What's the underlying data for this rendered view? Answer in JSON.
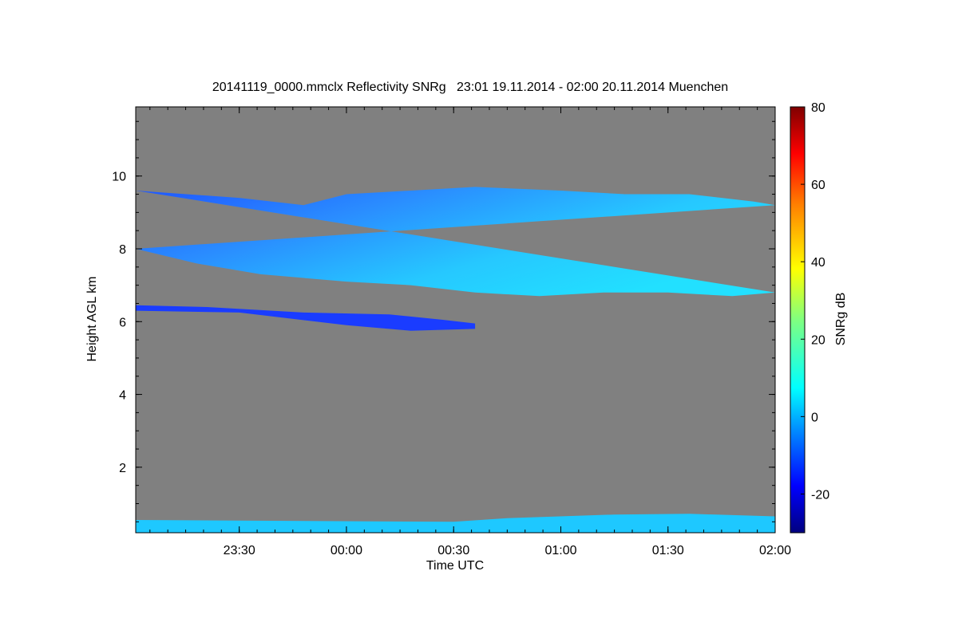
{
  "chart_data": {
    "type": "heatmap",
    "title": "20141119_0000.mmclx Reflectivity SNRg   23:01 19.11.2014 - 02:00 20.11.2014 Muenchen",
    "xlabel": "Time UTC",
    "ylabel": "Height AGL km",
    "x_range_hours": [
      23.017,
      26.0
    ],
    "y_range_km": [
      0.2,
      11.9
    ],
    "x_ticks": [
      {
        "value": 23.5,
        "label": "23:30"
      },
      {
        "value": 24.0,
        "label": "00:00"
      },
      {
        "value": 24.5,
        "label": "00:30"
      },
      {
        "value": 25.0,
        "label": "01:00"
      },
      {
        "value": 25.5,
        "label": "01:30"
      },
      {
        "value": 26.0,
        "label": "02:00"
      }
    ],
    "y_ticks": [
      {
        "value": 2,
        "label": "2"
      },
      {
        "value": 4,
        "label": "4"
      },
      {
        "value": 6,
        "label": "6"
      },
      {
        "value": 8,
        "label": "8"
      },
      {
        "value": 10,
        "label": "10"
      }
    ],
    "background_color": "#808080",
    "colorbar": {
      "label": "SNRg dB",
      "range": [
        -30,
        80
      ],
      "colormap": "jet",
      "ticks": [
        {
          "value": -20,
          "label": "-20"
        },
        {
          "value": 0,
          "label": "0"
        },
        {
          "value": 20,
          "label": "20"
        },
        {
          "value": 40,
          "label": "40"
        },
        {
          "value": 60,
          "label": "60"
        },
        {
          "value": 80,
          "label": "80"
        }
      ]
    },
    "features": [
      {
        "name": "upper cirrus layer",
        "color": "#1e8cff",
        "top_edge": [
          [
            23.017,
            9.6
          ],
          [
            23.5,
            9.4
          ],
          [
            23.8,
            9.2
          ],
          [
            24.0,
            9.5
          ],
          [
            24.3,
            9.6
          ],
          [
            24.6,
            9.7
          ],
          [
            25.0,
            9.6
          ],
          [
            25.3,
            9.5
          ],
          [
            25.6,
            9.5
          ],
          [
            25.9,
            9.3
          ],
          [
            26.0,
            9.2
          ]
        ],
        "bottom_edge": [
          [
            23.017,
            8.0
          ],
          [
            23.3,
            7.6
          ],
          [
            23.6,
            7.3
          ],
          [
            24.0,
            7.1
          ],
          [
            24.3,
            7.0
          ],
          [
            24.6,
            6.8
          ],
          [
            24.9,
            6.7
          ],
          [
            25.2,
            6.8
          ],
          [
            25.5,
            6.8
          ],
          [
            25.8,
            6.7
          ],
          [
            26.0,
            6.8
          ]
        ]
      },
      {
        "name": "mid-level cloud layer",
        "color": "#1a3cff",
        "top_edge": [
          [
            23.017,
            6.45
          ],
          [
            23.35,
            6.4
          ],
          [
            23.8,
            6.25
          ],
          [
            24.2,
            6.2
          ],
          [
            24.45,
            6.05
          ],
          [
            24.6,
            5.95
          ]
        ],
        "bottom_edge": [
          [
            24.6,
            5.8
          ],
          [
            24.3,
            5.75
          ],
          [
            24.0,
            5.9
          ],
          [
            23.5,
            6.25
          ],
          [
            23.017,
            6.3
          ]
        ]
      },
      {
        "name": "low-level boundary echo",
        "color": "#1ec8ff",
        "top_edge": [
          [
            23.017,
            0.55
          ],
          [
            24.5,
            0.5
          ],
          [
            24.75,
            0.6
          ],
          [
            25.25,
            0.7
          ],
          [
            25.6,
            0.72
          ],
          [
            26.0,
            0.65
          ]
        ],
        "bottom_edge": [
          [
            26.0,
            0.2
          ],
          [
            23.017,
            0.2
          ]
        ]
      }
    ]
  }
}
